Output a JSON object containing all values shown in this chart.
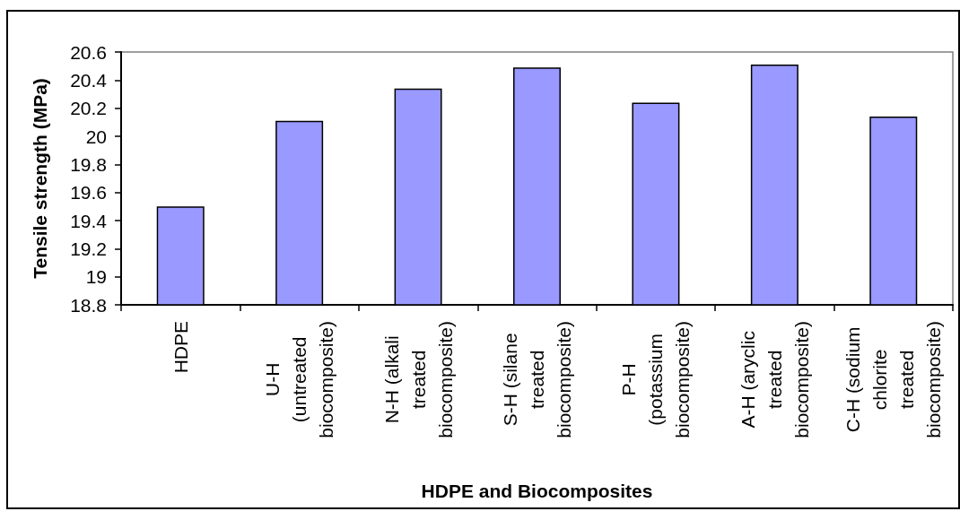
{
  "chart_data": {
    "type": "bar",
    "xlabel": "HDPE and Biocomposites",
    "ylabel": "Tensile strength (MPa)",
    "categories": [
      "HDPE",
      "U-H (untreated biocomposite)",
      "N-H (alkali treated biocomposite)",
      "S-H (silane treated biocomposite)",
      "P-H (potassium biocomposite)",
      "A-H (aryclic treated biocomposite)",
      "C-H (sodium chlorite treated biocomposite)"
    ],
    "values": [
      19.5,
      20.11,
      20.34,
      20.49,
      20.24,
      20.51,
      20.14
    ],
    "color": "#9999ff",
    "ylim": [
      18.8,
      20.6
    ],
    "yticks": [
      18.8,
      19.0,
      19.2,
      19.4,
      19.6,
      19.8,
      20.0,
      20.2,
      20.4,
      20.6
    ],
    "grid": false
  }
}
